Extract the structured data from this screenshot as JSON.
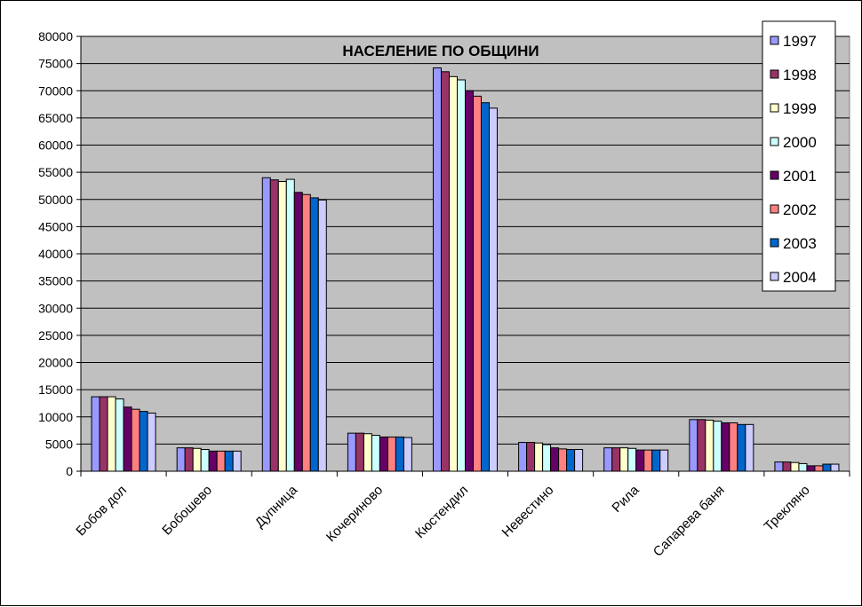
{
  "chart_data": {
    "type": "bar",
    "title": "НАСЕЛЕНИЕ ПО ОБЩИНИ",
    "xlabel": "",
    "ylabel": "",
    "ylim": [
      0,
      80000
    ],
    "y_ticks": [
      0,
      5000,
      10000,
      15000,
      20000,
      25000,
      30000,
      35000,
      40000,
      45000,
      50000,
      55000,
      60000,
      65000,
      70000,
      75000,
      80000
    ],
    "grid": true,
    "legend_position": "top-right",
    "background_color": "#c0c0c0",
    "categories": [
      "Бобов дол",
      "Бобошево",
      "Дупница",
      "Кочериново",
      "Кюстендил",
      "Невестино",
      "Рила",
      "Сапарева баня",
      "Трекляно"
    ],
    "series": [
      {
        "name": "1997",
        "color": "#9999ff",
        "values": [
          13700,
          4300,
          54000,
          7000,
          74200,
          5300,
          4300,
          9500,
          1700
        ]
      },
      {
        "name": "1998",
        "color": "#993366",
        "values": [
          13700,
          4300,
          53600,
          7000,
          73500,
          5300,
          4300,
          9500,
          1700
        ]
      },
      {
        "name": "1999",
        "color": "#ffffcc",
        "values": [
          13700,
          4200,
          53300,
          6900,
          72600,
          5200,
          4300,
          9400,
          1600
        ]
      },
      {
        "name": "2000",
        "color": "#ccffff",
        "values": [
          13300,
          4000,
          53700,
          6600,
          72000,
          4900,
          4200,
          9200,
          1400
        ]
      },
      {
        "name": "2001",
        "color": "#660066",
        "values": [
          11800,
          3700,
          51300,
          6300,
          70000,
          4300,
          3900,
          8900,
          1000
        ]
      },
      {
        "name": "2002",
        "color": "#ff8080",
        "values": [
          11400,
          3700,
          50900,
          6300,
          69000,
          4100,
          3900,
          8900,
          1000
        ]
      },
      {
        "name": "2003",
        "color": "#0066cc",
        "values": [
          11000,
          3700,
          50300,
          6300,
          67800,
          4000,
          3900,
          8600,
          1300
        ]
      },
      {
        "name": "2004",
        "color": "#ccccff",
        "values": [
          10700,
          3700,
          49900,
          6200,
          66800,
          4000,
          3900,
          8600,
          1300
        ]
      }
    ]
  }
}
